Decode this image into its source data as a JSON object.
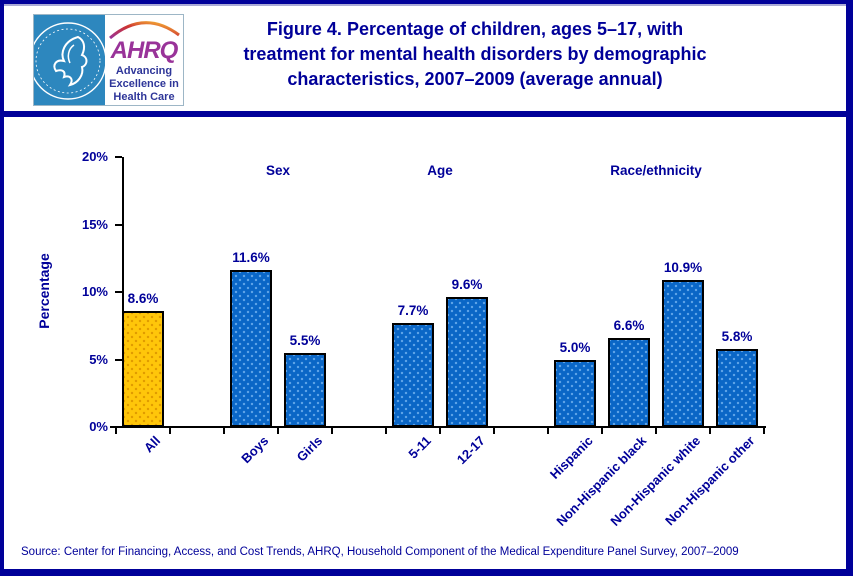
{
  "header": {
    "logo": {
      "ahrq": "AHRQ",
      "tagline": [
        "Advancing",
        "Excellence in",
        "Health Care"
      ]
    },
    "title_lines": [
      "Figure 4. Percentage of children, ages 5–17, with",
      "treatment for mental health disorders by demographic",
      "characteristics, 2007–2009 (average annual)"
    ]
  },
  "chart_data": {
    "type": "bar",
    "title": "Figure 4. Percentage of children, ages 5–17, with treatment for mental health disorders by demographic characteristics, 2007–2009 (average annual)",
    "xlabel": "",
    "ylabel": "Percentage",
    "ylim": [
      0,
      20
    ],
    "ytick_values": [
      0,
      5,
      10,
      15,
      20
    ],
    "ytick_labels": [
      "0%",
      "5%",
      "10%",
      "15%",
      "20%"
    ],
    "grid": false,
    "legend": null,
    "categories": [
      "All",
      "Boys",
      "Girls",
      "5-11",
      "12-17",
      "Hispanic",
      "Non-Hispanic black",
      "Non-Hispanic white",
      "Non-Hispanic other"
    ],
    "values": [
      8.6,
      11.6,
      5.5,
      7.7,
      9.6,
      5.0,
      6.6,
      10.9,
      5.8
    ],
    "value_labels": [
      "8.6%",
      "11.6%",
      "5.5%",
      "7.7%",
      "9.6%",
      "5.0%",
      "6.6%",
      "10.9%",
      "5.8%"
    ],
    "highlight_category": "All",
    "groups": [
      {
        "label": "Sex",
        "categories": [
          "Boys",
          "Girls"
        ]
      },
      {
        "label": "Age",
        "categories": [
          "5-11",
          "12-17"
        ]
      },
      {
        "label": "Race/ethnicity",
        "categories": [
          "Hispanic",
          "Non-Hispanic black",
          "Non-Hispanic white",
          "Non-Hispanic other"
        ]
      }
    ],
    "colors": {
      "default_bar": "#0A66C6",
      "highlight_bar": "#FFC60A",
      "bar_border": "#000000",
      "text_navy": "#000099",
      "axis": "#000000"
    }
  },
  "footer": {
    "source": "Source: Center for Financing, Access, and Cost Trends, AHRQ, Household Component of the Medical Expenditure Panel Survey, 2007–2009"
  }
}
